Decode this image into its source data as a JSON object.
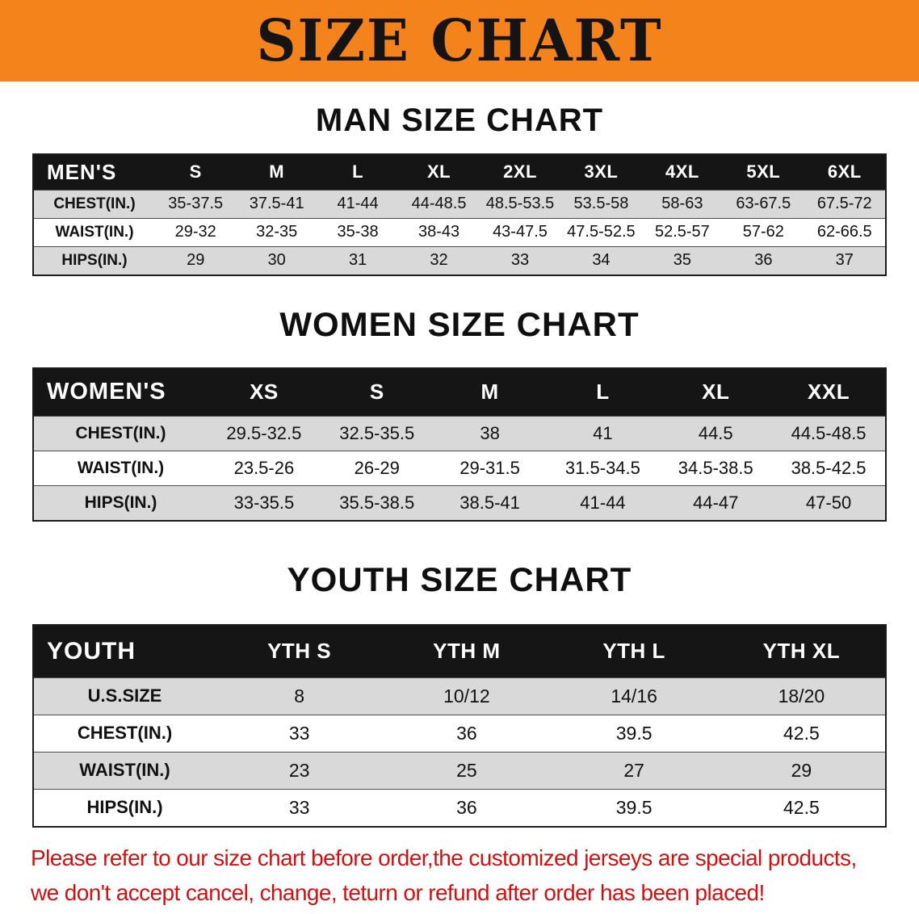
{
  "banner": {
    "title": "SIZE CHART"
  },
  "sections": [
    {
      "heading": "MAN SIZE CHART",
      "table": {
        "corner_label": "MEN'S",
        "columns": [
          "S",
          "M",
          "L",
          "XL",
          "2XL",
          "3XL",
          "4XL",
          "5XL",
          "6XL"
        ],
        "rows": [
          {
            "label": "CHEST(IN.)",
            "values": [
              "35-37.5",
              "37.5-41",
              "41-44",
              "44-48.5",
              "48.5-53.5",
              "53.5-58",
              "58-63",
              "63-67.5",
              "67.5-72"
            ]
          },
          {
            "label": "WAIST(IN.)",
            "values": [
              "29-32",
              "32-35",
              "35-38",
              "38-43",
              "43-47.5",
              "47.5-52.5",
              "52.5-57",
              "57-62",
              "62-66.5"
            ]
          },
          {
            "label": "HIPS(IN.)",
            "values": [
              "29",
              "30",
              "31",
              "32",
              "33",
              "34",
              "35",
              "36",
              "37"
            ]
          }
        ]
      }
    },
    {
      "heading": "WOMEN SIZE CHART",
      "table": {
        "corner_label": "WOMEN'S",
        "columns": [
          "XS",
          "S",
          "M",
          "L",
          "XL",
          "XXL"
        ],
        "rows": [
          {
            "label": "CHEST(IN.)",
            "values": [
              "29.5-32.5",
              "32.5-35.5",
              "38",
              "41",
              "44.5",
              "44.5-48.5"
            ]
          },
          {
            "label": "WAIST(IN.)",
            "values": [
              "23.5-26",
              "26-29",
              "29-31.5",
              "31.5-34.5",
              "34.5-38.5",
              "38.5-42.5"
            ]
          },
          {
            "label": "HIPS(IN.)",
            "values": [
              "33-35.5",
              "35.5-38.5",
              "38.5-41",
              "41-44",
              "44-47",
              "47-50"
            ]
          }
        ]
      }
    },
    {
      "heading": "YOUTH SIZE CHART",
      "table": {
        "corner_label": "YOUTH",
        "columns": [
          "YTH S",
          "YTH M",
          "YTH L",
          "YTH XL"
        ],
        "rows": [
          {
            "label": "U.S.SIZE",
            "values": [
              "8",
              "10/12",
              "14/16",
              "18/20"
            ]
          },
          {
            "label": "CHEST(IN.)",
            "values": [
              "33",
              "36",
              "39.5",
              "42.5"
            ]
          },
          {
            "label": "WAIST(IN.)",
            "values": [
              "23",
              "25",
              "27",
              "29"
            ]
          },
          {
            "label": "HIPS(IN.)",
            "values": [
              "33",
              "36",
              "39.5",
              "42.5"
            ]
          }
        ]
      }
    }
  ],
  "disclaimer": {
    "lines": [
      "Please refer to our size chart before order,the customized jerseys are special products,",
      "we don't accept cancel, change, teturn or refund after order has been placed!"
    ]
  },
  "colors": {
    "banner_bg": "#f4831b",
    "table_header_bg": "#151515",
    "row_shade": "#d9d9d9",
    "disclaimer_red": "#cf1111"
  }
}
